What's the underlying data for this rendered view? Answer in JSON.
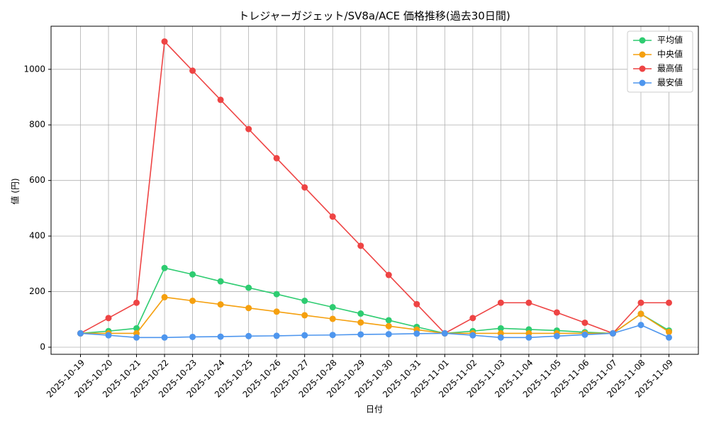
{
  "chart_data": {
    "type": "line",
    "title": "トレジャーガジェット/SV8a/ACE 価格推移(過去30日間)",
    "x_label": "日付",
    "y_label": "値 (円)",
    "categories": [
      "2025-10-19",
      "2025-10-20",
      "2025-10-21",
      "2025-10-22",
      "2025-10-23",
      "2025-10-24",
      "2025-10-25",
      "2025-10-26",
      "2025-10-27",
      "2025-10-28",
      "2025-10-29",
      "2025-10-30",
      "2025-10-31",
      "2025-11-01",
      "2025-11-02",
      "2025-11-03",
      "2025-11-04",
      "2025-11-05",
      "2025-11-06",
      "2025-11-07",
      "2025-11-08",
      "2025-11-09"
    ],
    "series": [
      {
        "name": "平均値",
        "color": "#2ecc71",
        "values": [
          50,
          58,
          68,
          285,
          262,
          237,
          214,
          191,
          167,
          144,
          121,
          97,
          73,
          50,
          58,
          68,
          64,
          60,
          54,
          50,
          120,
          60
        ]
      },
      {
        "name": "中央値",
        "color": "#f5a00f",
        "values": [
          50,
          50,
          50,
          180,
          167,
          154,
          141,
          128,
          115,
          102,
          89,
          76,
          63,
          50,
          50,
          50,
          50,
          50,
          50,
          50,
          120,
          55
        ]
      },
      {
        "name": "最高値",
        "color": "#ee4444",
        "values": [
          50,
          105,
          160,
          1100,
          995,
          890,
          785,
          680,
          575,
          470,
          365,
          260,
          155,
          50,
          105,
          160,
          160,
          125,
          88,
          50,
          160,
          160
        ]
      },
      {
        "name": "最安値",
        "color": "#4e96ee",
        "values": [
          50,
          43,
          35,
          35,
          37,
          38,
          40,
          41,
          43,
          44,
          46,
          47,
          49,
          50,
          43,
          35,
          35,
          40,
          45,
          50,
          80,
          35
        ]
      }
    ],
    "ylim": [
      -25.5,
      1155
    ],
    "yticks": [
      0,
      200,
      400,
      600,
      800,
      1000
    ],
    "grid": true,
    "legend": "upper right"
  }
}
